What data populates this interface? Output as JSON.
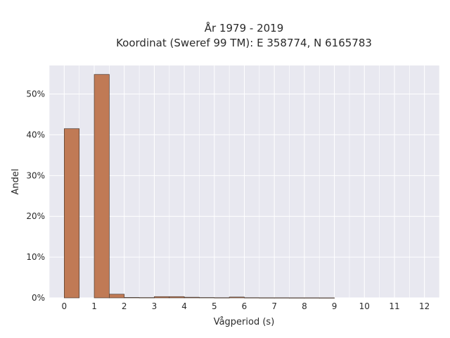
{
  "chart_data": {
    "type": "bar",
    "title_line1": "År 1979 - 2019",
    "title_line2": "Koordinat (Sweref 99 TM): E 358774, N 6165783",
    "xlabel": "Vågperiod (s)",
    "ylabel": "Andel",
    "xlim": [
      -0.5,
      12.5
    ],
    "ylim": [
      0,
      0.57
    ],
    "x_ticks": [
      0,
      1,
      2,
      3,
      4,
      5,
      6,
      7,
      8,
      9,
      10,
      11,
      12
    ],
    "y_ticks": [
      0,
      0.1,
      0.2,
      0.3,
      0.4,
      0.5
    ],
    "y_tick_labels": [
      "0%",
      "10%",
      "20%",
      "30%",
      "40%",
      "50%"
    ],
    "bin_width": 0.5,
    "bins": [
      {
        "x_start": 0.0,
        "value": 0.415
      },
      {
        "x_start": 1.0,
        "value": 0.548
      },
      {
        "x_start": 1.5,
        "value": 0.009
      },
      {
        "x_start": 2.0,
        "value": 0.001
      },
      {
        "x_start": 2.5,
        "value": 0.0007
      },
      {
        "x_start": 3.0,
        "value": 0.003
      },
      {
        "x_start": 3.5,
        "value": 0.003
      },
      {
        "x_start": 4.0,
        "value": 0.0015
      },
      {
        "x_start": 4.5,
        "value": 0.0008
      },
      {
        "x_start": 5.0,
        "value": 0.0005
      },
      {
        "x_start": 5.5,
        "value": 0.002
      },
      {
        "x_start": 6.0,
        "value": 0.0005
      },
      {
        "x_start": 6.5,
        "value": 0.0003
      },
      {
        "x_start": 7.0,
        "value": 0.0003
      },
      {
        "x_start": 7.5,
        "value": 0.0002
      },
      {
        "x_start": 8.0,
        "value": 0.0002
      },
      {
        "x_start": 8.5,
        "value": 0.0001
      }
    ],
    "bar_color": "#c07a55",
    "bar_edge_color": "#4a3a30",
    "plot_bg_color": "#e8e8f0",
    "grid": true
  }
}
